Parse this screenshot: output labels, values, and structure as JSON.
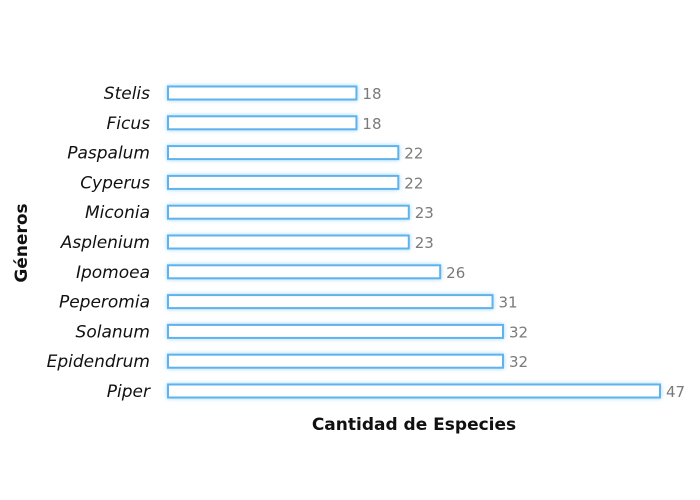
{
  "chart_data": {
    "type": "bar",
    "orientation": "horizontal",
    "categories": [
      "Stelis",
      "Ficus",
      "Paspalum",
      "Cyperus",
      "Miconia",
      "Asplenium",
      "Ipomoea",
      "Peperomia",
      "Solanum",
      "Epidendrum",
      "Piper"
    ],
    "values": [
      18,
      18,
      22,
      22,
      23,
      23,
      26,
      31,
      32,
      32,
      47
    ],
    "xlabel": "Cantidad de Especies",
    "ylabel": "Géneros",
    "xlim": [
      0,
      47
    ],
    "grid": false,
    "legend": "none",
    "data_labels": true,
    "bar_fill": "#ffffff",
    "bar_stroke": "#5fb3ea",
    "bar_glow": "#8fd0ff",
    "label_color": "#7a7a7a"
  }
}
